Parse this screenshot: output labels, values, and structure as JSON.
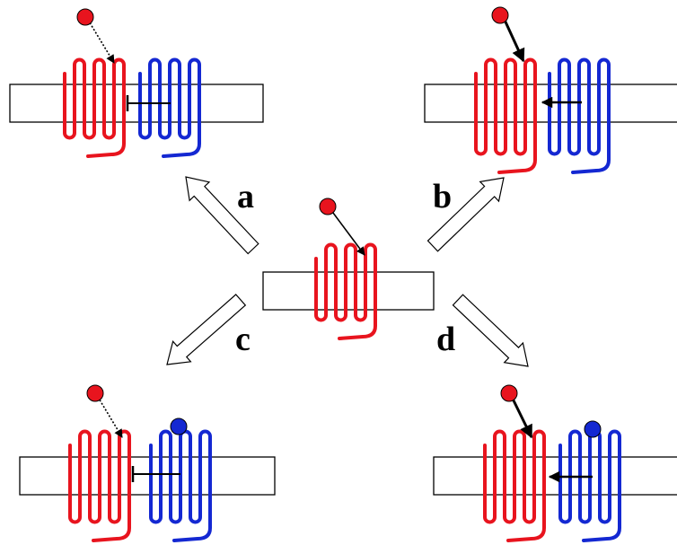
{
  "labels": {
    "a": "a",
    "b": "b",
    "c": "c",
    "d": "d"
  },
  "colors": {
    "receptor_red": "#e8141e",
    "receptor_blue": "#1428d2",
    "ligand_red": "#e8141e",
    "ligand_blue": "#1428d2",
    "membrane_fill": "#ffffff",
    "outline": "#000000"
  },
  "panels": [
    {
      "id": "center",
      "receptors": [
        "red"
      ],
      "ligand": "red",
      "arrow": "activation-thin",
      "allosteric": false
    },
    {
      "id": "a",
      "receptors": [
        "red",
        "blue"
      ],
      "ligand": "red",
      "arrow": "dotted",
      "allosteric": false,
      "cross_effect": "inhibition"
    },
    {
      "id": "b",
      "receptors": [
        "red",
        "blue"
      ],
      "ligand": "red",
      "arrow": "activation-thick",
      "allosteric": false,
      "cross_effect": "activation"
    },
    {
      "id": "c",
      "receptors": [
        "red",
        "blue"
      ],
      "ligand": "red",
      "arrow": "dotted",
      "allosteric": true,
      "cross_effect": "inhibition"
    },
    {
      "id": "d",
      "receptors": [
        "red",
        "blue"
      ],
      "ligand": "red",
      "arrow": "activation-thick",
      "allosteric": true,
      "cross_effect": "activation"
    }
  ]
}
